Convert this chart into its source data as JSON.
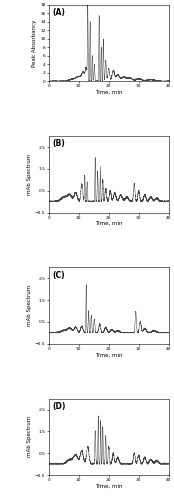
{
  "panels": [
    "(A)",
    "(B)",
    "(C)",
    "(D)"
  ],
  "xlabel": "Time, min",
  "ylabels": [
    "Peak Absorbancy",
    "mAb Spectrum",
    "mAb Spectrum",
    "mAb Spectrum"
  ],
  "xlim": [
    0,
    40
  ],
  "ylim_A": [
    0,
    18
  ],
  "ylim_BCD": [
    -50000.0,
    300000.0
  ],
  "line_color": "#444444",
  "label_fontsize": 4.0,
  "tick_fontsize": 3.2,
  "panel_label_fontsize": 5.5
}
